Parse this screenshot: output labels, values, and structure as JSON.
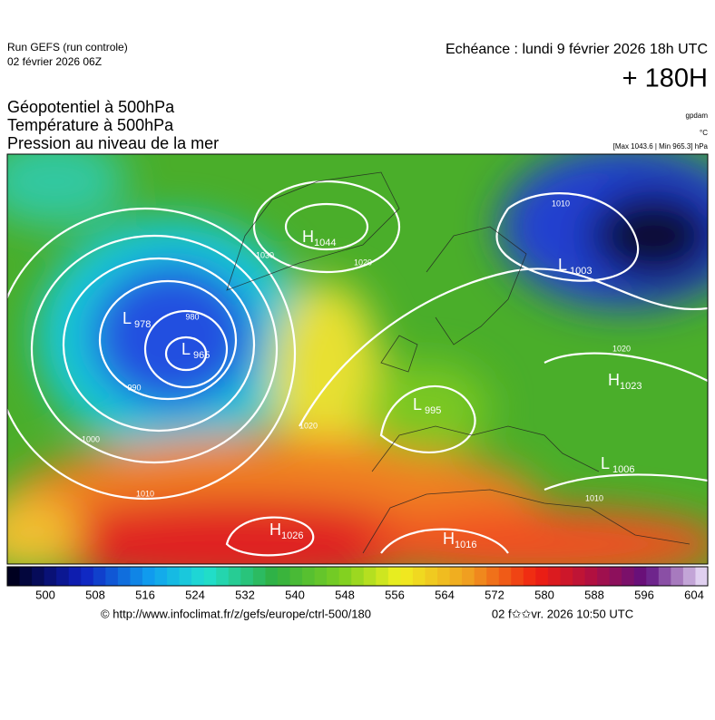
{
  "header": {
    "run": "Run GEFS (run controle)",
    "run_date": "02 février 2026 06Z",
    "valid": "Echéance : lundi 9 février 2026 18h UTC",
    "lead": "+ 180H"
  },
  "layers": {
    "titles": [
      "Géopotentiel à 500hPa",
      "Température à 500hPa",
      "Pression au niveau de la mer"
    ],
    "units": [
      "gpdam",
      "°C"
    ],
    "extremes": "[Max 1043.6 | Min 965.3] hPa"
  },
  "systems": [
    {
      "kind": "H",
      "value": "1044"
    },
    {
      "kind": "L",
      "value": "978"
    },
    {
      "kind": "L",
      "value": "965"
    },
    {
      "kind": "L",
      "value": "995"
    },
    {
      "kind": "L",
      "value": "1003"
    },
    {
      "kind": "H",
      "value": "1023"
    },
    {
      "kind": "L",
      "value": "1006"
    },
    {
      "kind": "H",
      "value": "1026"
    },
    {
      "kind": "H",
      "value": "1016"
    }
  ],
  "isobar_labels": [
    "1020",
    "1010",
    "1020",
    "990",
    "1000",
    "1010",
    "1020",
    "1010",
    "1030",
    "980"
  ],
  "scale": {
    "labels": [
      500,
      508,
      516,
      524,
      532,
      540,
      548,
      556,
      564,
      572,
      580,
      588,
      596,
      604
    ]
  },
  "footer": {
    "source": "© http://www.infoclimat.fr/z/gefs/europe/ctrl-500/180",
    "issued": "02 f✩✩vr. 2026 10:50 UTC"
  }
}
